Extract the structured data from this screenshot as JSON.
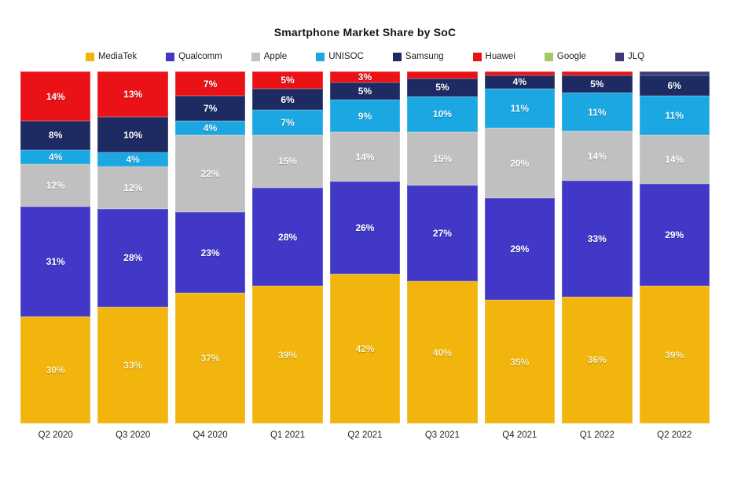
{
  "title": "Smartphone Market Share by SoC",
  "chart_data": {
    "type": "bar",
    "subtype": "stacked-100-percent",
    "title": "Smartphone Market Share by SoC",
    "xlabel": "",
    "ylabel": "",
    "ylim": [
      0,
      100
    ],
    "grid": false,
    "legend_position": "top",
    "label_min_value": 3,
    "categories": [
      "Q2 2020",
      "Q3 2020",
      "Q4 2020",
      "Q1 2021",
      "Q2 2021",
      "Q3 2021",
      "Q4 2021",
      "Q1 2022",
      "Q2 2022"
    ],
    "series": [
      {
        "name": "MediaTek",
        "color": "#F2B50D",
        "label_color": "#FDF3C2",
        "values": [
          30,
          33,
          37,
          39,
          42,
          40,
          35,
          36,
          39
        ]
      },
      {
        "name": "Qualcomm",
        "color": "#4238C8",
        "label_color": "#FFFFFF",
        "values": [
          31,
          28,
          23,
          28,
          26,
          27,
          29,
          33,
          29
        ]
      },
      {
        "name": "Apple",
        "color": "#C0C0C0",
        "label_color": "#FFFFFF",
        "values": [
          12,
          12,
          22,
          15,
          14,
          15,
          20,
          14,
          14
        ]
      },
      {
        "name": "UNISOC",
        "color": "#1BA7E2",
        "label_color": "#F2FBFF",
        "values": [
          4,
          4,
          4,
          7,
          9,
          10,
          11,
          11,
          11
        ]
      },
      {
        "name": "Samsung",
        "color": "#1E2A62",
        "label_color": "#FFFFFF",
        "values": [
          8,
          10,
          7,
          6,
          5,
          5,
          4,
          5,
          6
        ]
      },
      {
        "name": "Huawei",
        "color": "#EA1117",
        "label_color": "#FFFFFF",
        "values": [
          14,
          13,
          7,
          5,
          3,
          2,
          1,
          1,
          0
        ]
      },
      {
        "name": "Google",
        "color": "#A3C966",
        "label_color": "#FFFFFF",
        "values": [
          0,
          0,
          0,
          0,
          0,
          0,
          0,
          0,
          0
        ]
      },
      {
        "name": "JLQ",
        "color": "#3F3A75",
        "label_color": "#FFFFFF",
        "values": [
          0,
          0,
          0,
          0,
          0,
          0,
          0,
          0,
          1
        ]
      }
    ]
  }
}
